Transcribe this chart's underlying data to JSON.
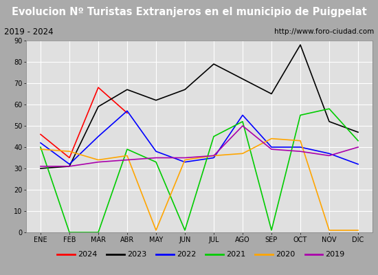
{
  "title": "Evolucion Nº Turistas Extranjeros en el municipio de Puigpelat",
  "subtitle_left": "2019 - 2024",
  "subtitle_right": "http://www.foro-ciudad.com",
  "months": [
    "ENE",
    "FEB",
    "MAR",
    "ABR",
    "MAY",
    "JUN",
    "JUL",
    "AGO",
    "SEP",
    "OCT",
    "NOV",
    "DIC"
  ],
  "ylim": [
    0,
    90
  ],
  "yticks": [
    0,
    10,
    20,
    30,
    40,
    50,
    60,
    70,
    80,
    90
  ],
  "series": {
    "2024": {
      "color": "#ff0000",
      "values": [
        46,
        35,
        68,
        56,
        null,
        null,
        null,
        null,
        null,
        null,
        null,
        null
      ]
    },
    "2023": {
      "color": "#000000",
      "values": [
        30,
        31,
        59,
        67,
        62,
        67,
        79,
        72,
        65,
        88,
        52,
        47
      ]
    },
    "2022": {
      "color": "#0000ff",
      "values": [
        42,
        32,
        45,
        57,
        38,
        33,
        35,
        55,
        40,
        40,
        37,
        32
      ]
    },
    "2021": {
      "color": "#00cc00",
      "values": [
        40,
        0,
        0,
        39,
        33,
        1,
        45,
        52,
        1,
        55,
        58,
        43
      ]
    },
    "2020": {
      "color": "#ffa500",
      "values": [
        39,
        38,
        34,
        36,
        1,
        34,
        36,
        37,
        44,
        43,
        1,
        1
      ]
    },
    "2019": {
      "color": "#aa00aa",
      "values": [
        31,
        31,
        33,
        34,
        35,
        35,
        36,
        50,
        39,
        38,
        36,
        40
      ]
    }
  },
  "legend_order": [
    "2024",
    "2023",
    "2022",
    "2021",
    "2020",
    "2019"
  ],
  "title_bg_color": "#4477cc",
  "title_text_color": "#ffffff",
  "subtitle_bg_color": "#dddddd",
  "plot_bg_color": "#e0e0e0",
  "grid_color": "#ffffff",
  "fig_bg_color": "#aaaaaa",
  "legend_bg_color": "#f0f0f0",
  "legend_border_color": "#888888"
}
